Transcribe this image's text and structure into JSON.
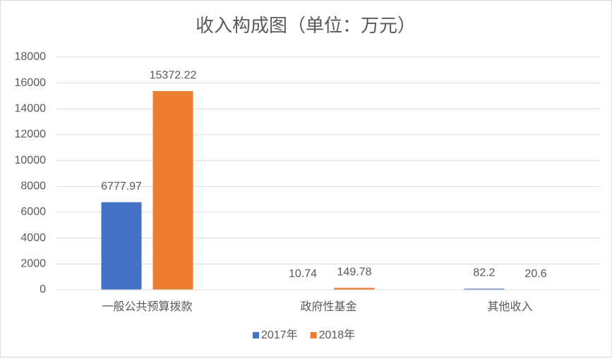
{
  "chart_data": {
    "type": "bar",
    "title": "收入构成图（单位：万元）",
    "categories": [
      "一般公共预算拨款",
      "政府性基金",
      "其他收入"
    ],
    "series": [
      {
        "name": "2017年",
        "color": "#4472c4",
        "values": [
          6777.97,
          10.74,
          82.2
        ]
      },
      {
        "name": "2018年",
        "color": "#ed7d31",
        "values": [
          15372.22,
          149.78,
          20.6
        ]
      }
    ],
    "ylim": [
      0,
      18000
    ],
    "yticks": [
      0,
      2000,
      4000,
      6000,
      8000,
      10000,
      12000,
      14000,
      16000,
      18000
    ],
    "grid": true,
    "legend": "bottom"
  }
}
